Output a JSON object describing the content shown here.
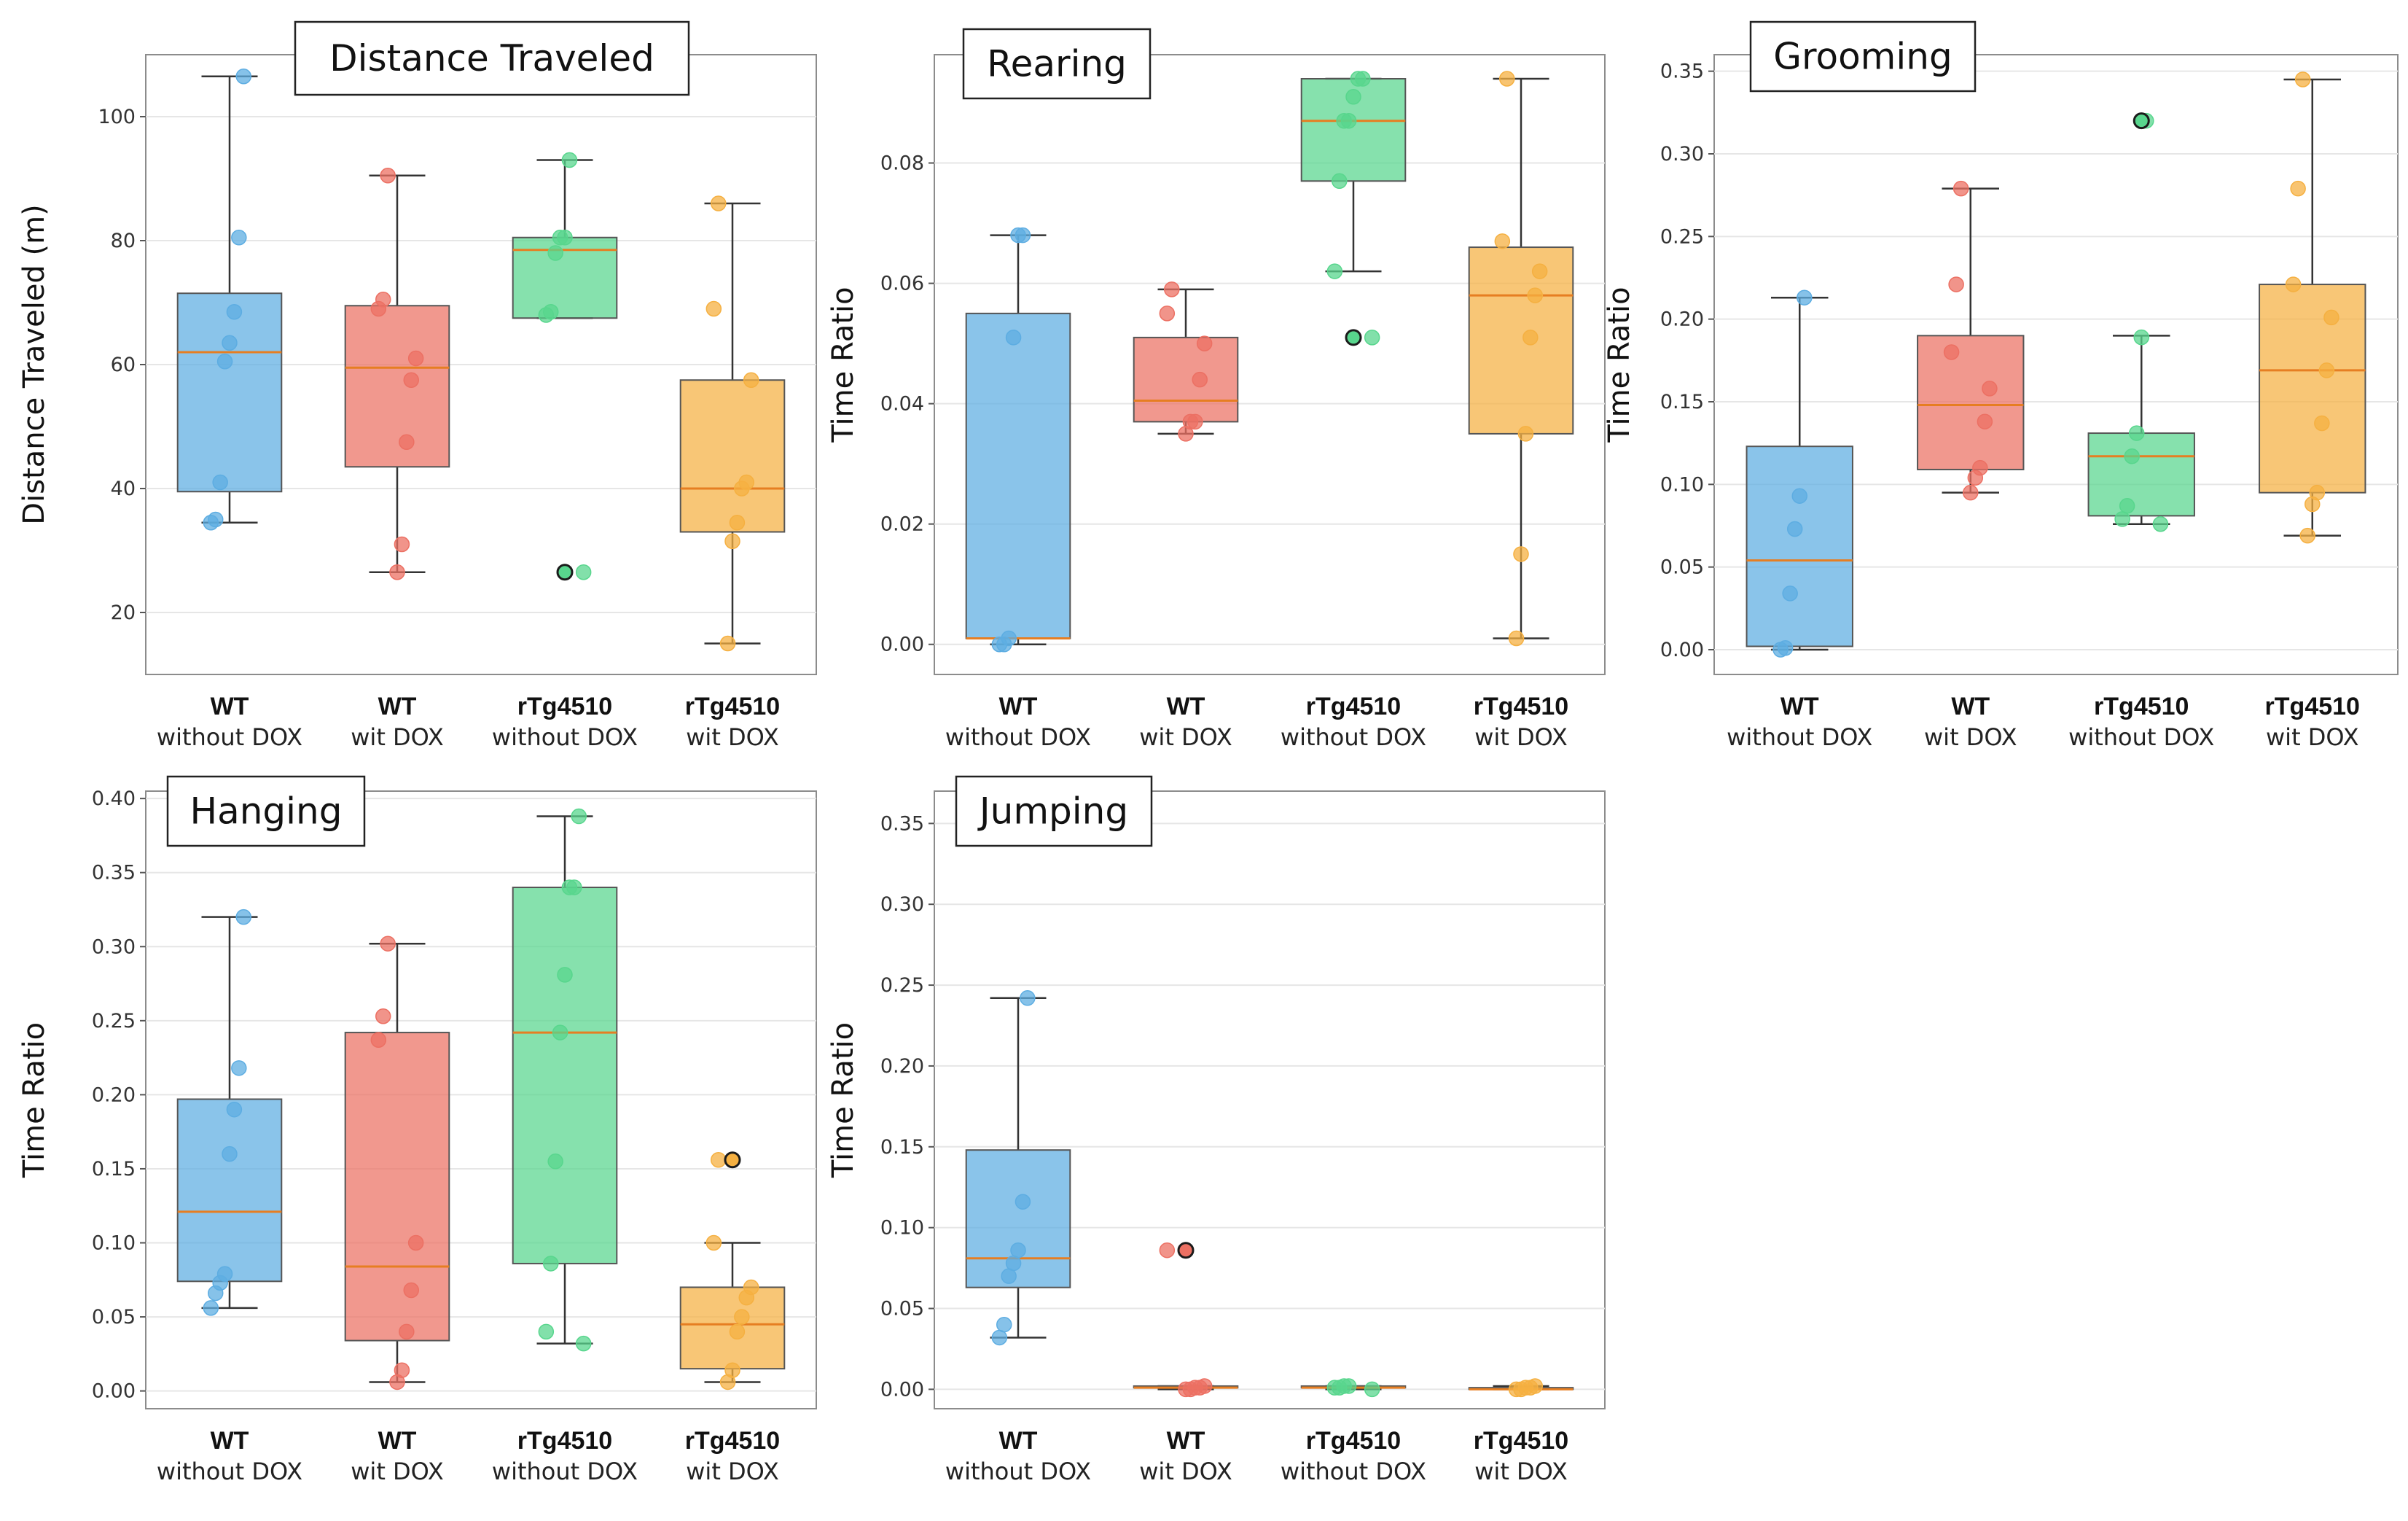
{
  "colors": {
    "wt_no_dox": "#5DADE2",
    "wt_dox": "#EC7063",
    "rtg_no_dox": "#58D68D",
    "rtg_dox": "#F5B041",
    "median": "#E67E22",
    "grid": "#E6E6E6",
    "frame": "#8C8C8C"
  },
  "categories": [
    {
      "line1": "WT",
      "line2": "without DOX"
    },
    {
      "line1": "WT",
      "line2": "wit DOX"
    },
    {
      "line1": "rTg4510",
      "line2": "without DOX"
    },
    {
      "line1": "rTg4510",
      "line2": "wit DOX"
    }
  ],
  "chart_data": [
    {
      "type": "box",
      "title": "Distance Traveled",
      "ylabel": "Distance Traveled (m)",
      "ylim": [
        10,
        110
      ],
      "yticks": [
        "20",
        "40",
        "60",
        "80",
        "100"
      ],
      "tick_values": [
        20,
        40,
        60,
        80,
        100
      ],
      "groups": [
        {
          "q1": 39.5,
          "median": 62,
          "q3": 71.5,
          "whisker_low": 34.5,
          "whisker_high": 106.5,
          "outliers": [],
          "points": [
            34.5,
            35,
            41,
            60.5,
            63.5,
            68.5,
            80.5,
            106.5
          ]
        },
        {
          "q1": 43.5,
          "median": 59.5,
          "q3": 69.5,
          "whisker_low": 26.5,
          "whisker_high": 90.5,
          "outliers": [],
          "points": [
            26.5,
            31,
            47.5,
            57.5,
            61,
            69,
            70.5,
            90.5
          ]
        },
        {
          "q1": 67.5,
          "median": 78.5,
          "q3": 80.5,
          "whisker_low": 67.5,
          "whisker_high": 93,
          "outliers": [
            26.5
          ],
          "points": [
            26.5,
            68,
            68.5,
            78,
            80.5,
            80.5,
            93
          ]
        },
        {
          "q1": 33,
          "median": 40,
          "q3": 57.5,
          "whisker_low": 15,
          "whisker_high": 86,
          "outliers": [],
          "points": [
            15,
            31.5,
            34.5,
            40,
            41,
            57.5,
            69,
            86
          ]
        }
      ]
    },
    {
      "type": "box",
      "title": "Rearing",
      "ylabel": "Time Ratio",
      "ylim": [
        -0.005,
        0.098
      ],
      "yticks": [
        "0.00",
        "0.02",
        "0.04",
        "0.06",
        "0.08"
      ],
      "tick_values": [
        0,
        0.02,
        0.04,
        0.06,
        0.08
      ],
      "groups": [
        {
          "q1": 0.001,
          "median": 0.001,
          "q3": 0.055,
          "whisker_low": 0,
          "whisker_high": 0.068,
          "outliers": [],
          "points": [
            0,
            0,
            0.001,
            0.051,
            0.068,
            0.068
          ]
        },
        {
          "q1": 0.037,
          "median": 0.0405,
          "q3": 0.051,
          "whisker_low": 0.035,
          "whisker_high": 0.059,
          "outliers": [],
          "points": [
            0.035,
            0.037,
            0.037,
            0.044,
            0.05,
            0.055,
            0.059
          ]
        },
        {
          "q1": 0.077,
          "median": 0.087,
          "q3": 0.094,
          "whisker_low": 0.062,
          "whisker_high": 0.094,
          "outliers": [
            0.051
          ],
          "points": [
            0.051,
            0.062,
            0.077,
            0.087,
            0.087,
            0.091,
            0.094,
            0.094
          ]
        },
        {
          "q1": 0.035,
          "median": 0.058,
          "q3": 0.066,
          "whisker_low": 0.001,
          "whisker_high": 0.094,
          "outliers": [],
          "points": [
            0.001,
            0.015,
            0.035,
            0.051,
            0.058,
            0.062,
            0.067,
            0.094
          ]
        }
      ]
    },
    {
      "type": "box",
      "title": "Grooming",
      "ylabel": "Time Ratio",
      "ylim": [
        -0.015,
        0.36
      ],
      "yticks": [
        "0.00",
        "0.05",
        "0.10",
        "0.15",
        "0.20",
        "0.25",
        "0.30",
        "0.35"
      ],
      "tick_values": [
        0,
        0.05,
        0.1,
        0.15,
        0.2,
        0.25,
        0.3,
        0.35
      ],
      "groups": [
        {
          "q1": 0.002,
          "median": 0.054,
          "q3": 0.123,
          "whisker_low": 0,
          "whisker_high": 0.213,
          "outliers": [],
          "points": [
            0,
            0.001,
            0.034,
            0.073,
            0.093,
            0.213
          ]
        },
        {
          "q1": 0.109,
          "median": 0.148,
          "q3": 0.19,
          "whisker_low": 0.095,
          "whisker_high": 0.279,
          "outliers": [],
          "points": [
            0.095,
            0.104,
            0.11,
            0.138,
            0.158,
            0.18,
            0.221,
            0.279
          ]
        },
        {
          "q1": 0.081,
          "median": 0.117,
          "q3": 0.131,
          "whisker_low": 0.076,
          "whisker_high": 0.19,
          "outliers": [
            0.32
          ],
          "points": [
            0.076,
            0.079,
            0.087,
            0.117,
            0.131,
            0.189,
            0.32
          ]
        },
        {
          "q1": 0.095,
          "median": 0.169,
          "q3": 0.221,
          "whisker_low": 0.069,
          "whisker_high": 0.345,
          "outliers": [],
          "points": [
            0.069,
            0.088,
            0.095,
            0.137,
            0.169,
            0.201,
            0.221,
            0.279,
            0.345
          ]
        }
      ]
    },
    {
      "type": "box",
      "title": "Hanging",
      "ylabel": "Time Ratio",
      "ylim": [
        -0.012,
        0.405
      ],
      "yticks": [
        "0.00",
        "0.05",
        "0.10",
        "0.15",
        "0.20",
        "0.25",
        "0.30",
        "0.35",
        "0.40"
      ],
      "tick_values": [
        0,
        0.05,
        0.1,
        0.15,
        0.2,
        0.25,
        0.3,
        0.35,
        0.4
      ],
      "groups": [
        {
          "q1": 0.074,
          "median": 0.121,
          "q3": 0.197,
          "whisker_low": 0.056,
          "whisker_high": 0.32,
          "outliers": [],
          "points": [
            0.056,
            0.066,
            0.073,
            0.079,
            0.16,
            0.19,
            0.218,
            0.32
          ]
        },
        {
          "q1": 0.034,
          "median": 0.084,
          "q3": 0.242,
          "whisker_low": 0.006,
          "whisker_high": 0.302,
          "outliers": [],
          "points": [
            0.006,
            0.014,
            0.04,
            0.068,
            0.1,
            0.237,
            0.253,
            0.302
          ]
        },
        {
          "q1": 0.086,
          "median": 0.242,
          "q3": 0.34,
          "whisker_low": 0.032,
          "whisker_high": 0.388,
          "outliers": [],
          "points": [
            0.032,
            0.04,
            0.086,
            0.155,
            0.242,
            0.281,
            0.34,
            0.34,
            0.388
          ]
        },
        {
          "q1": 0.015,
          "median": 0.045,
          "q3": 0.07,
          "whisker_low": 0.006,
          "whisker_high": 0.1,
          "outliers": [
            0.156
          ],
          "points": [
            0.006,
            0.014,
            0.04,
            0.05,
            0.063,
            0.07,
            0.1,
            0.156
          ]
        }
      ]
    },
    {
      "type": "box",
      "title": "Jumping",
      "ylabel": "Time Ratio",
      "ylim": [
        -0.012,
        0.37
      ],
      "yticks": [
        "0.00",
        "0.05",
        "0.10",
        "0.15",
        "0.20",
        "0.25",
        "0.30",
        "0.35"
      ],
      "tick_values": [
        0,
        0.05,
        0.1,
        0.15,
        0.2,
        0.25,
        0.3,
        0.35
      ],
      "groups": [
        {
          "q1": 0.063,
          "median": 0.081,
          "q3": 0.148,
          "whisker_low": 0.032,
          "whisker_high": 0.242,
          "outliers": [],
          "points": [
            0.032,
            0.04,
            0.07,
            0.078,
            0.086,
            0.116,
            0.242
          ]
        },
        {
          "q1": 0.001,
          "median": 0.001,
          "q3": 0.002,
          "whisker_low": 0,
          "whisker_high": 0.002,
          "outliers": [
            0.086
          ],
          "points": [
            0,
            0,
            0.001,
            0.001,
            0.002,
            0.086
          ]
        },
        {
          "q1": 0.001,
          "median": 0.001,
          "q3": 0.002,
          "whisker_low": 0,
          "whisker_high": 0.002,
          "outliers": [],
          "points": [
            0,
            0.001,
            0.001,
            0.002,
            0.002
          ]
        },
        {
          "q1": 0,
          "median": 0,
          "q3": 0.001,
          "whisker_low": 0,
          "whisker_high": 0.002,
          "outliers": [],
          "points": [
            0,
            0,
            0.001,
            0.001,
            0.002
          ]
        }
      ]
    }
  ]
}
